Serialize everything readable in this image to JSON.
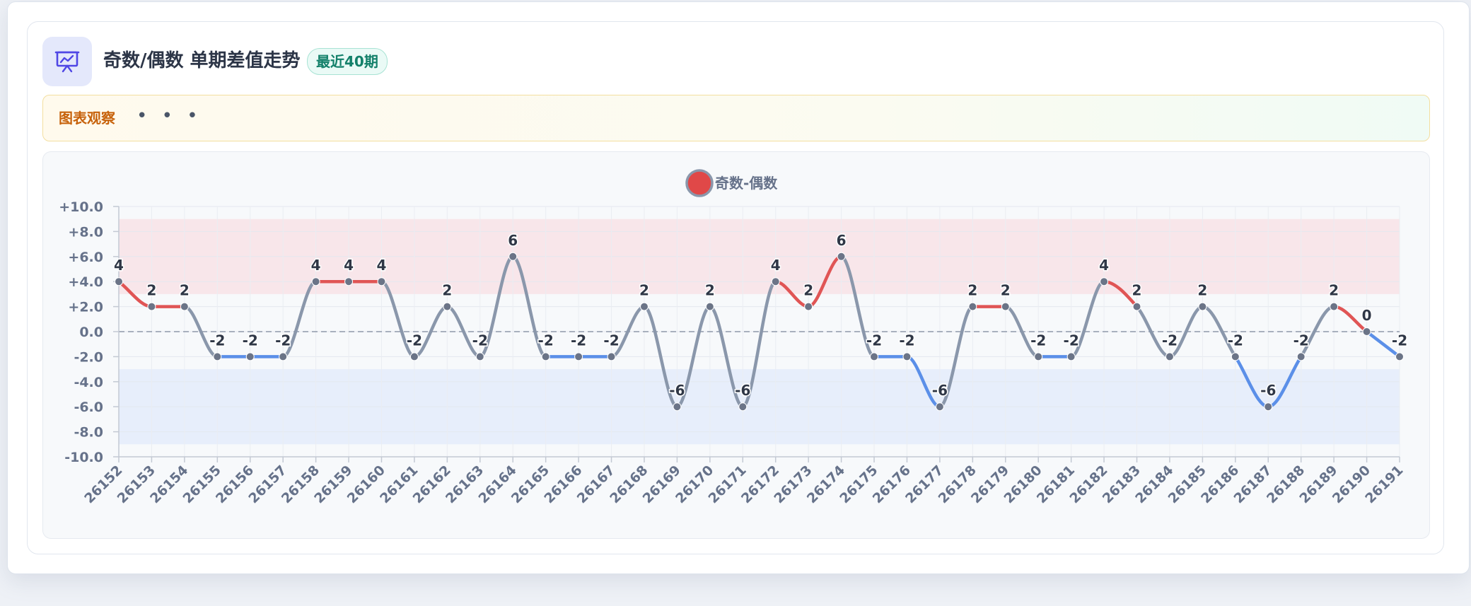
{
  "header": {
    "title": "奇数/偶数 单期差值走势",
    "badge": "最近40期",
    "icon": "presentation-chart-icon"
  },
  "observation": {
    "label": "图表观察",
    "dots": "• • •"
  },
  "colors": {
    "positive_line": "#e05555",
    "negative_line": "#5b8fe8",
    "neutral_line": "#8a97ab",
    "positive_band": "#f8e6ea",
    "negative_band": "#e7eefb",
    "point": "#6b7487",
    "legend_dot": "#e04848"
  },
  "chart_data": {
    "type": "line",
    "legend": "奇数-偶数",
    "legend_position": "top-center",
    "x": [
      "26152",
      "26153",
      "26154",
      "26155",
      "26156",
      "26157",
      "26158",
      "26159",
      "26160",
      "26161",
      "26162",
      "26163",
      "26164",
      "26165",
      "26166",
      "26167",
      "26168",
      "26169",
      "26170",
      "26171",
      "26172",
      "26173",
      "26174",
      "26175",
      "26176",
      "26177",
      "26178",
      "26179",
      "26180",
      "26181",
      "26182",
      "26183",
      "26184",
      "26185",
      "26186",
      "26187",
      "26188",
      "26189",
      "26190",
      "26191"
    ],
    "series": [
      {
        "name": "奇数-偶数",
        "values": [
          4,
          2,
          2,
          -2,
          -2,
          -2,
          4,
          4,
          4,
          -2,
          2,
          -2,
          6,
          -2,
          -2,
          -2,
          2,
          -6,
          2,
          -6,
          4,
          2,
          6,
          -2,
          -2,
          -6,
          2,
          2,
          -2,
          -2,
          4,
          2,
          -2,
          2,
          -2,
          -6,
          -2,
          2,
          0,
          -2
        ]
      }
    ],
    "point_labels": [
      "4",
      "2",
      "2",
      "-2",
      "-2",
      "-2",
      "4",
      "4",
      "4",
      "-2",
      "2",
      "-2",
      "6",
      "-2",
      "-2",
      "-2",
      "2",
      "-6",
      "2",
      "-6",
      "4",
      "2",
      "6",
      "-2",
      "-2",
      "-6",
      "2",
      "2",
      "-2",
      "-2",
      "4",
      "2",
      "-2",
      "2",
      "-2",
      "-6",
      "-2",
      "2",
      "0",
      "-2"
    ],
    "ylim": [
      -10,
      10
    ],
    "y_ticks": [
      10,
      8,
      6,
      4,
      2,
      0,
      -2,
      -4,
      -6,
      -8,
      -10
    ],
    "y_tick_labels": [
      "+10.0",
      "+8.0",
      "+6.0",
      "+4.0",
      "+2.0",
      "0.0",
      "-2.0",
      "-4.0",
      "-6.0",
      "-8.0",
      "-10.0"
    ],
    "bands": [
      {
        "from": 3,
        "to": 9,
        "kind": "positive"
      },
      {
        "from": -3,
        "to": -9,
        "kind": "negative"
      }
    ],
    "zero_line": "dashed",
    "grid": true
  }
}
